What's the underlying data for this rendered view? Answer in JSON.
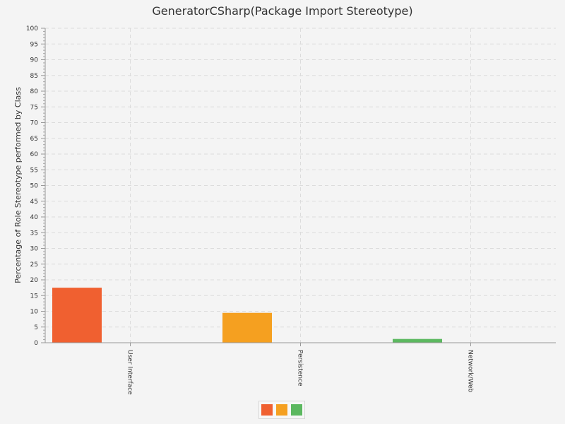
{
  "chart_data": {
    "type": "bar",
    "title": "GeneratorCSharp(Package Import Stereotype)",
    "xlabel": "",
    "ylabel": "Percentage of Role Stereotype performed by Class",
    "categories": [
      "User Interface",
      "Persistence",
      "Network/Web"
    ],
    "values": [
      17.5,
      9.5,
      1.2
    ],
    "colors": [
      "#f06030",
      "#f5a020",
      "#5cb860"
    ],
    "ylim": [
      0,
      100
    ],
    "y_major_step": 5,
    "y_minor_step": 1,
    "grid": true,
    "legend_position": "bottom"
  }
}
